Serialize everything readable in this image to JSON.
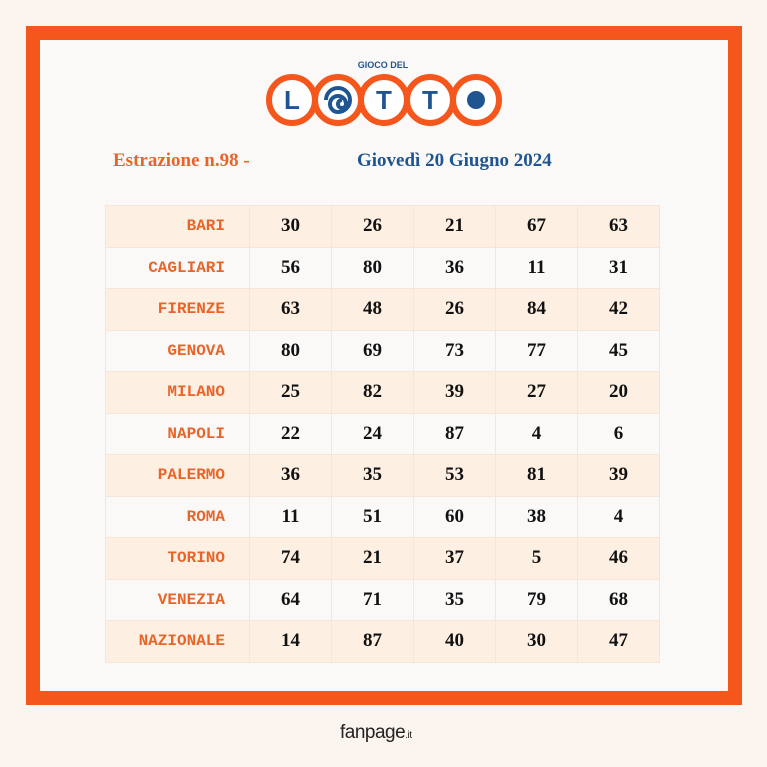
{
  "logo": {
    "subtitle": "GIOCO DEL",
    "letters": [
      "L",
      "T",
      "T"
    ]
  },
  "header": {
    "draw": "Estrazione n.98 -",
    "date": "Giovedì 20 Giugno 2024"
  },
  "table": {
    "rows": [
      [
        "BARI",
        30,
        26,
        21,
        67,
        63
      ],
      [
        "CAGLIARI",
        56,
        80,
        36,
        11,
        31
      ],
      [
        "FIRENZE",
        63,
        48,
        26,
        84,
        42
      ],
      [
        "GENOVA",
        80,
        69,
        73,
        77,
        45
      ],
      [
        "MILANO",
        25,
        82,
        39,
        27,
        20
      ],
      [
        "NAPOLI",
        22,
        24,
        87,
        4,
        6
      ],
      [
        "PALERMO",
        36,
        35,
        53,
        81,
        39
      ],
      [
        "ROMA",
        11,
        51,
        60,
        38,
        4
      ],
      [
        "TORINO",
        74,
        21,
        37,
        5,
        46
      ],
      [
        "VENEZIA",
        64,
        71,
        35,
        79,
        68
      ],
      [
        "NAZIONALE",
        14,
        87,
        40,
        30,
        47
      ]
    ]
  },
  "footer": {
    "brand": "fanpage",
    "suffix": ".it"
  }
}
